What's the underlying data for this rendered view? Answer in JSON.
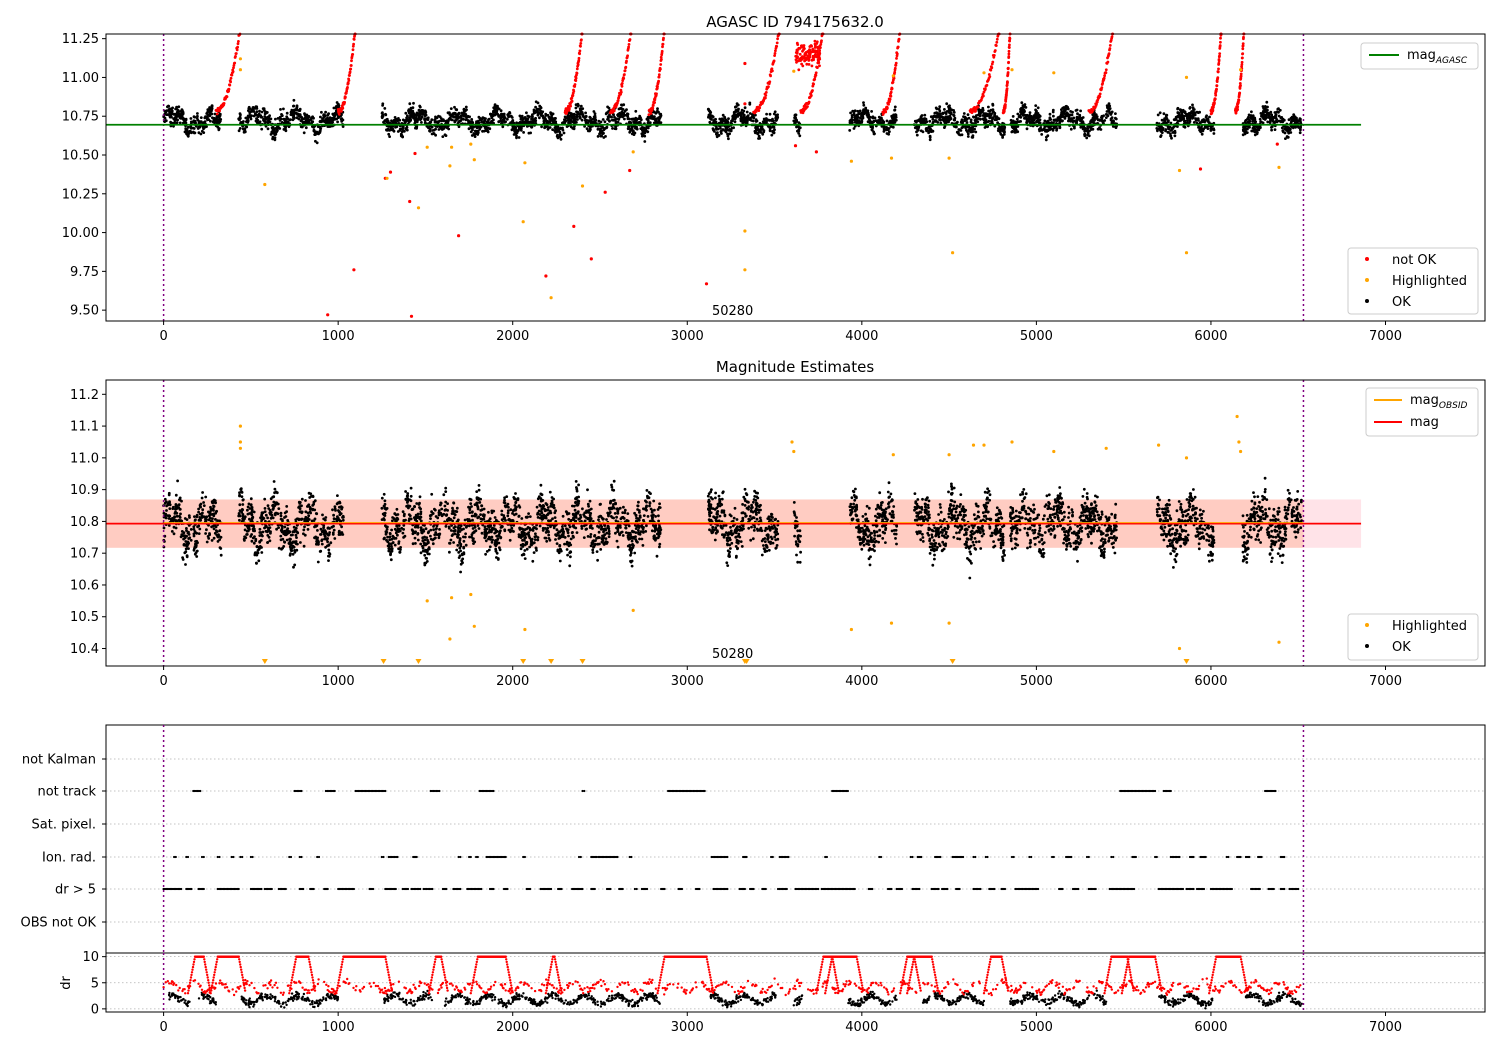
{
  "colors": {
    "ok": "#000000",
    "not_ok": "#ff0000",
    "highlighted": "#ffa500",
    "agasc_line": "#008000",
    "mag_line": "#ff0000",
    "band": "#ffc0cb",
    "obs_boundary": "#800080"
  },
  "chart_data": [
    {
      "id": "top",
      "type": "scatter",
      "title": "AGASC ID 794175632.0",
      "xlim": [
        -330,
        7570
      ],
      "ylim": [
        9.43,
        11.28
      ],
      "xticks": [
        0,
        1000,
        2000,
        3000,
        4000,
        5000,
        6000,
        7000
      ],
      "yticks": [
        9.5,
        9.75,
        10.0,
        10.25,
        10.5,
        10.75,
        11.0,
        11.25
      ],
      "ytick_labels": [
        "9.50",
        "9.75",
        "10.00",
        "10.25",
        "10.50",
        "10.75",
        "11.00",
        "11.25"
      ],
      "hline": {
        "y": 10.695,
        "x": [
          -330,
          6860
        ],
        "label": "mag",
        "label_sub": "AGASC"
      },
      "obs_boundaries": [
        0,
        6530
      ],
      "annotation": {
        "text": "50280",
        "x": 3260,
        "y": 9.47
      },
      "legend_points": [
        {
          "label": "not OK",
          "color_key": "not_ok"
        },
        {
          "label": "Highlighted",
          "color_key": "highlighted"
        },
        {
          "label": "OK",
          "color_key": "ok"
        }
      ],
      "highlighted_points": [
        [
          580,
          10.31
        ],
        [
          440,
          11.05
        ],
        [
          440,
          11.12
        ],
        [
          1280,
          10.35
        ],
        [
          1460,
          10.16
        ],
        [
          1510,
          10.55
        ],
        [
          1640,
          10.43
        ],
        [
          1650,
          10.55
        ],
        [
          1760,
          10.57
        ],
        [
          1780,
          10.47
        ],
        [
          2060,
          10.07
        ],
        [
          2070,
          10.45
        ],
        [
          2220,
          9.58
        ],
        [
          2400,
          10.3
        ],
        [
          2690,
          10.52
        ],
        [
          3330,
          10.01
        ],
        [
          3330,
          9.76
        ],
        [
          3610,
          11.04
        ],
        [
          3940,
          10.46
        ],
        [
          4170,
          10.48
        ],
        [
          4180,
          11.01
        ],
        [
          4500,
          10.48
        ],
        [
          4520,
          9.87
        ],
        [
          4700,
          11.03
        ],
        [
          4860,
          11.05
        ],
        [
          5100,
          11.03
        ],
        [
          5820,
          10.4
        ],
        [
          5860,
          9.87
        ],
        [
          5860,
          11.0
        ],
        [
          6170,
          11.05
        ],
        [
          6390,
          10.42
        ]
      ],
      "not_ok_points": [
        [
          940,
          9.47
        ],
        [
          1090,
          9.76
        ],
        [
          1270,
          10.35
        ],
        [
          1300,
          10.39
        ],
        [
          1410,
          10.2
        ],
        [
          1420,
          9.46
        ],
        [
          1440,
          10.51
        ],
        [
          1690,
          9.98
        ],
        [
          2190,
          9.72
        ],
        [
          2350,
          10.04
        ],
        [
          2450,
          9.83
        ],
        [
          2530,
          10.26
        ],
        [
          2670,
          10.4
        ],
        [
          3110,
          9.67
        ],
        [
          3330,
          10.83
        ],
        [
          3330,
          11.09
        ],
        [
          3620,
          10.56
        ],
        [
          3740,
          10.52
        ],
        [
          5940,
          10.41
        ],
        [
          6380,
          10.57
        ]
      ],
      "ok_ranges": [
        [
          0,
          160
        ],
        [
          170,
          330
        ],
        [
          430,
          1030
        ],
        [
          1250,
          1880
        ],
        [
          1880,
          2850
        ],
        [
          3120,
          3450
        ],
        [
          3450,
          3520
        ],
        [
          3610,
          3650
        ],
        [
          3930,
          4200
        ],
        [
          4300,
          4820
        ],
        [
          4850,
          5460
        ],
        [
          5690,
          6020
        ],
        [
          6180,
          6520
        ]
      ],
      "ok_base": 10.72,
      "ok_spread": 0.06
    },
    {
      "id": "mid",
      "type": "scatter",
      "title": "Magnitude Estimates",
      "xlim": [
        -330,
        7570
      ],
      "ylim": [
        10.345,
        11.245
      ],
      "xticks": [
        0,
        1000,
        2000,
        3000,
        4000,
        5000,
        6000,
        7000
      ],
      "yticks": [
        10.4,
        10.5,
        10.6,
        10.7,
        10.8,
        10.9,
        11.0,
        11.1,
        11.2
      ],
      "ytick_labels": [
        "10.4",
        "10.5",
        "10.6",
        "10.7",
        "10.8",
        "10.9",
        "11.0",
        "11.1",
        "11.2"
      ],
      "mag_line": {
        "y": 10.793,
        "x": [
          -330,
          6860
        ]
      },
      "band": {
        "y0": 10.717,
        "y1": 10.869,
        "x": [
          -330,
          6860
        ]
      },
      "obs_boundaries": [
        0,
        6530
      ],
      "annotation": {
        "text": "50280",
        "x": 3260,
        "y": 10.37
      },
      "legend_lines": [
        {
          "label": "mag",
          "label_sub": "OBSID",
          "color_key": "highlighted"
        },
        {
          "label": "mag",
          "label_sub": "",
          "color_key": "mag_line"
        }
      ],
      "legend_points": [
        {
          "label": "Highlighted",
          "color_key": "highlighted"
        },
        {
          "label": "OK",
          "color_key": "ok"
        }
      ],
      "highlighted_points": [
        [
          440,
          11.1
        ],
        [
          440,
          11.05
        ],
        [
          440,
          11.03
        ],
        [
          1510,
          10.55
        ],
        [
          1640,
          10.43
        ],
        [
          1650,
          10.56
        ],
        [
          1760,
          10.57
        ],
        [
          1780,
          10.47
        ],
        [
          2070,
          10.46
        ],
        [
          2690,
          10.52
        ],
        [
          3600,
          11.05
        ],
        [
          3610,
          11.02
        ],
        [
          3940,
          10.46
        ],
        [
          4170,
          10.48
        ],
        [
          4180,
          11.01
        ],
        [
          4500,
          10.48
        ],
        [
          4500,
          11.01
        ],
        [
          4640,
          11.04
        ],
        [
          4700,
          11.04
        ],
        [
          4860,
          11.05
        ],
        [
          5100,
          11.02
        ],
        [
          5400,
          11.03
        ],
        [
          5700,
          11.04
        ],
        [
          5820,
          10.4
        ],
        [
          5860,
          11.0
        ],
        [
          6150,
          11.13
        ],
        [
          6160,
          11.05
        ],
        [
          6170,
          11.02
        ],
        [
          6390,
          10.42
        ]
      ],
      "lower_markers_x": [
        580,
        1260,
        1460,
        2060,
        2220,
        2400,
        3330,
        3340,
        4520,
        5860
      ],
      "ok_ranges": [
        [
          0,
          160
        ],
        [
          170,
          330
        ],
        [
          430,
          1030
        ],
        [
          1250,
          1880
        ],
        [
          1880,
          2850
        ],
        [
          3120,
          3450
        ],
        [
          3450,
          3520
        ],
        [
          3610,
          3650
        ],
        [
          3930,
          4200
        ],
        [
          4300,
          4820
        ],
        [
          4850,
          5460
        ],
        [
          5690,
          6020
        ],
        [
          6180,
          6520
        ]
      ],
      "ok_base": 10.79,
      "ok_spread": 0.07
    },
    {
      "id": "flags",
      "type": "scatter",
      "xlim": [
        -330,
        7570
      ],
      "rows": [
        "not Kalman",
        "not track",
        "Sat. pixel.",
        "Ion. rad.",
        "dr > 5",
        "OBS not OK"
      ],
      "obs_boundaries": [
        0,
        6530
      ],
      "row_segments": {
        "not track": [
          [
            170,
            210
          ],
          [
            750,
            790
          ],
          [
            930,
            980
          ],
          [
            1100,
            1270
          ],
          [
            1530,
            1580
          ],
          [
            1810,
            1890
          ],
          [
            2400,
            2410
          ],
          [
            2890,
            3100
          ],
          [
            3830,
            3920
          ],
          [
            5480,
            5680
          ],
          [
            5730,
            5770
          ],
          [
            6310,
            6370
          ]
        ],
        "Ion. rad.": [
          [
            60,
            70
          ],
          [
            130,
            140
          ],
          [
            220,
            230
          ],
          [
            310,
            320
          ],
          [
            390,
            400
          ],
          [
            440,
            450
          ],
          [
            500,
            510
          ],
          [
            720,
            730
          ],
          [
            780,
            790
          ],
          [
            880,
            890
          ],
          [
            1250,
            1260
          ],
          [
            1290,
            1340
          ],
          [
            1430,
            1450
          ],
          [
            1690,
            1700
          ],
          [
            1750,
            1760
          ],
          [
            1790,
            1800
          ],
          [
            1850,
            1960
          ],
          [
            2060,
            2070
          ],
          [
            2380,
            2390
          ],
          [
            2450,
            2480
          ],
          [
            2490,
            2600
          ],
          [
            2670,
            2680
          ],
          [
            3140,
            3230
          ],
          [
            3320,
            3340
          ],
          [
            3480,
            3490
          ],
          [
            3530,
            3580
          ],
          [
            3790,
            3800
          ],
          [
            4100,
            4110
          ],
          [
            4280,
            4290
          ],
          [
            4320,
            4340
          ],
          [
            4420,
            4450
          ],
          [
            4520,
            4580
          ],
          [
            4640,
            4650
          ],
          [
            4710,
            4720
          ],
          [
            4860,
            4870
          ],
          [
            4960,
            4970
          ],
          [
            5090,
            5100
          ],
          [
            5170,
            5200
          ],
          [
            5290,
            5300
          ],
          [
            5430,
            5440
          ],
          [
            5550,
            5570
          ],
          [
            5680,
            5690
          ],
          [
            5770,
            5820
          ],
          [
            5880,
            5900
          ],
          [
            5940,
            5970
          ],
          [
            6090,
            6100
          ],
          [
            6150,
            6170
          ],
          [
            6200,
            6220
          ],
          [
            6270,
            6290
          ],
          [
            6400,
            6420
          ]
        ],
        "dr > 5": [
          [
            0,
            100
          ],
          [
            130,
            160
          ],
          [
            200,
            230
          ],
          [
            310,
            430
          ],
          [
            500,
            560
          ],
          [
            580,
            620
          ],
          [
            660,
            700
          ],
          [
            780,
            800
          ],
          [
            840,
            860
          ],
          [
            920,
            940
          ],
          [
            1000,
            1090
          ],
          [
            1180,
            1200
          ],
          [
            1270,
            1330
          ],
          [
            1370,
            1400
          ],
          [
            1420,
            1470
          ],
          [
            1490,
            1540
          ],
          [
            1600,
            1620
          ],
          [
            1660,
            1700
          ],
          [
            1740,
            1820
          ],
          [
            1870,
            1890
          ],
          [
            1950,
            1970
          ],
          [
            2080,
            2100
          ],
          [
            2160,
            2220
          ],
          [
            2260,
            2280
          ],
          [
            2340,
            2400
          ],
          [
            2450,
            2470
          ],
          [
            2540,
            2560
          ],
          [
            2610,
            2630
          ],
          [
            2700,
            2710
          ],
          [
            2740,
            2770
          ],
          [
            2850,
            2870
          ],
          [
            2950,
            2970
          ],
          [
            3050,
            3070
          ],
          [
            3150,
            3230
          ],
          [
            3300,
            3330
          ],
          [
            3360,
            3380
          ],
          [
            3430,
            3450
          ],
          [
            3520,
            3570
          ],
          [
            3620,
            3750
          ],
          [
            3770,
            3960
          ],
          [
            4040,
            4060
          ],
          [
            4150,
            4170
          ],
          [
            4200,
            4230
          ],
          [
            4290,
            4330
          ],
          [
            4400,
            4440
          ],
          [
            4460,
            4490
          ],
          [
            4540,
            4560
          ],
          [
            4640,
            4680
          ],
          [
            4730,
            4760
          ],
          [
            4800,
            4820
          ],
          [
            4880,
            5010
          ],
          [
            5130,
            5150
          ],
          [
            5210,
            5240
          ],
          [
            5300,
            5340
          ],
          [
            5420,
            5560
          ],
          [
            5700,
            5840
          ],
          [
            5860,
            5900
          ],
          [
            5920,
            5960
          ],
          [
            6000,
            6120
          ],
          [
            6230,
            6280
          ],
          [
            6330,
            6360
          ],
          [
            6400,
            6420
          ],
          [
            6450,
            6500
          ]
        ]
      }
    },
    {
      "id": "dr",
      "type": "scatter",
      "ylabel": "dr",
      "xlim": [
        -330,
        7570
      ],
      "ylim": [
        -0.6,
        10.7
      ],
      "xticks": [
        0,
        1000,
        2000,
        3000,
        4000,
        5000,
        6000,
        7000
      ],
      "yticks": [
        0,
        5,
        10
      ],
      "ytick_labels": [
        "0",
        "5",
        "10"
      ],
      "obs_boundaries": [
        0,
        6530
      ],
      "red_plateaus": [
        [
          180,
          230
        ],
        [
          310,
          430
        ],
        [
          760,
          830
        ],
        [
          1030,
          1270
        ],
        [
          1560,
          1590
        ],
        [
          1800,
          1960
        ],
        [
          2230,
          2240
        ],
        [
          2870,
          3110
        ],
        [
          3780,
          3830
        ],
        [
          3830,
          3970
        ],
        [
          4260,
          4300
        ],
        [
          4300,
          4400
        ],
        [
          4740,
          4800
        ],
        [
          5430,
          5520
        ],
        [
          5530,
          5680
        ],
        [
          6030,
          6170
        ]
      ],
      "ok_ranges": [
        [
          30,
          150
        ],
        [
          200,
          300
        ],
        [
          440,
          1000
        ],
        [
          1260,
          1540
        ],
        [
          1600,
          2850
        ],
        [
          3130,
          3510
        ],
        [
          3610,
          3660
        ],
        [
          3920,
          4200
        ],
        [
          4350,
          4700
        ],
        [
          4850,
          5400
        ],
        [
          5700,
          6010
        ],
        [
          6200,
          6520
        ]
      ]
    }
  ]
}
